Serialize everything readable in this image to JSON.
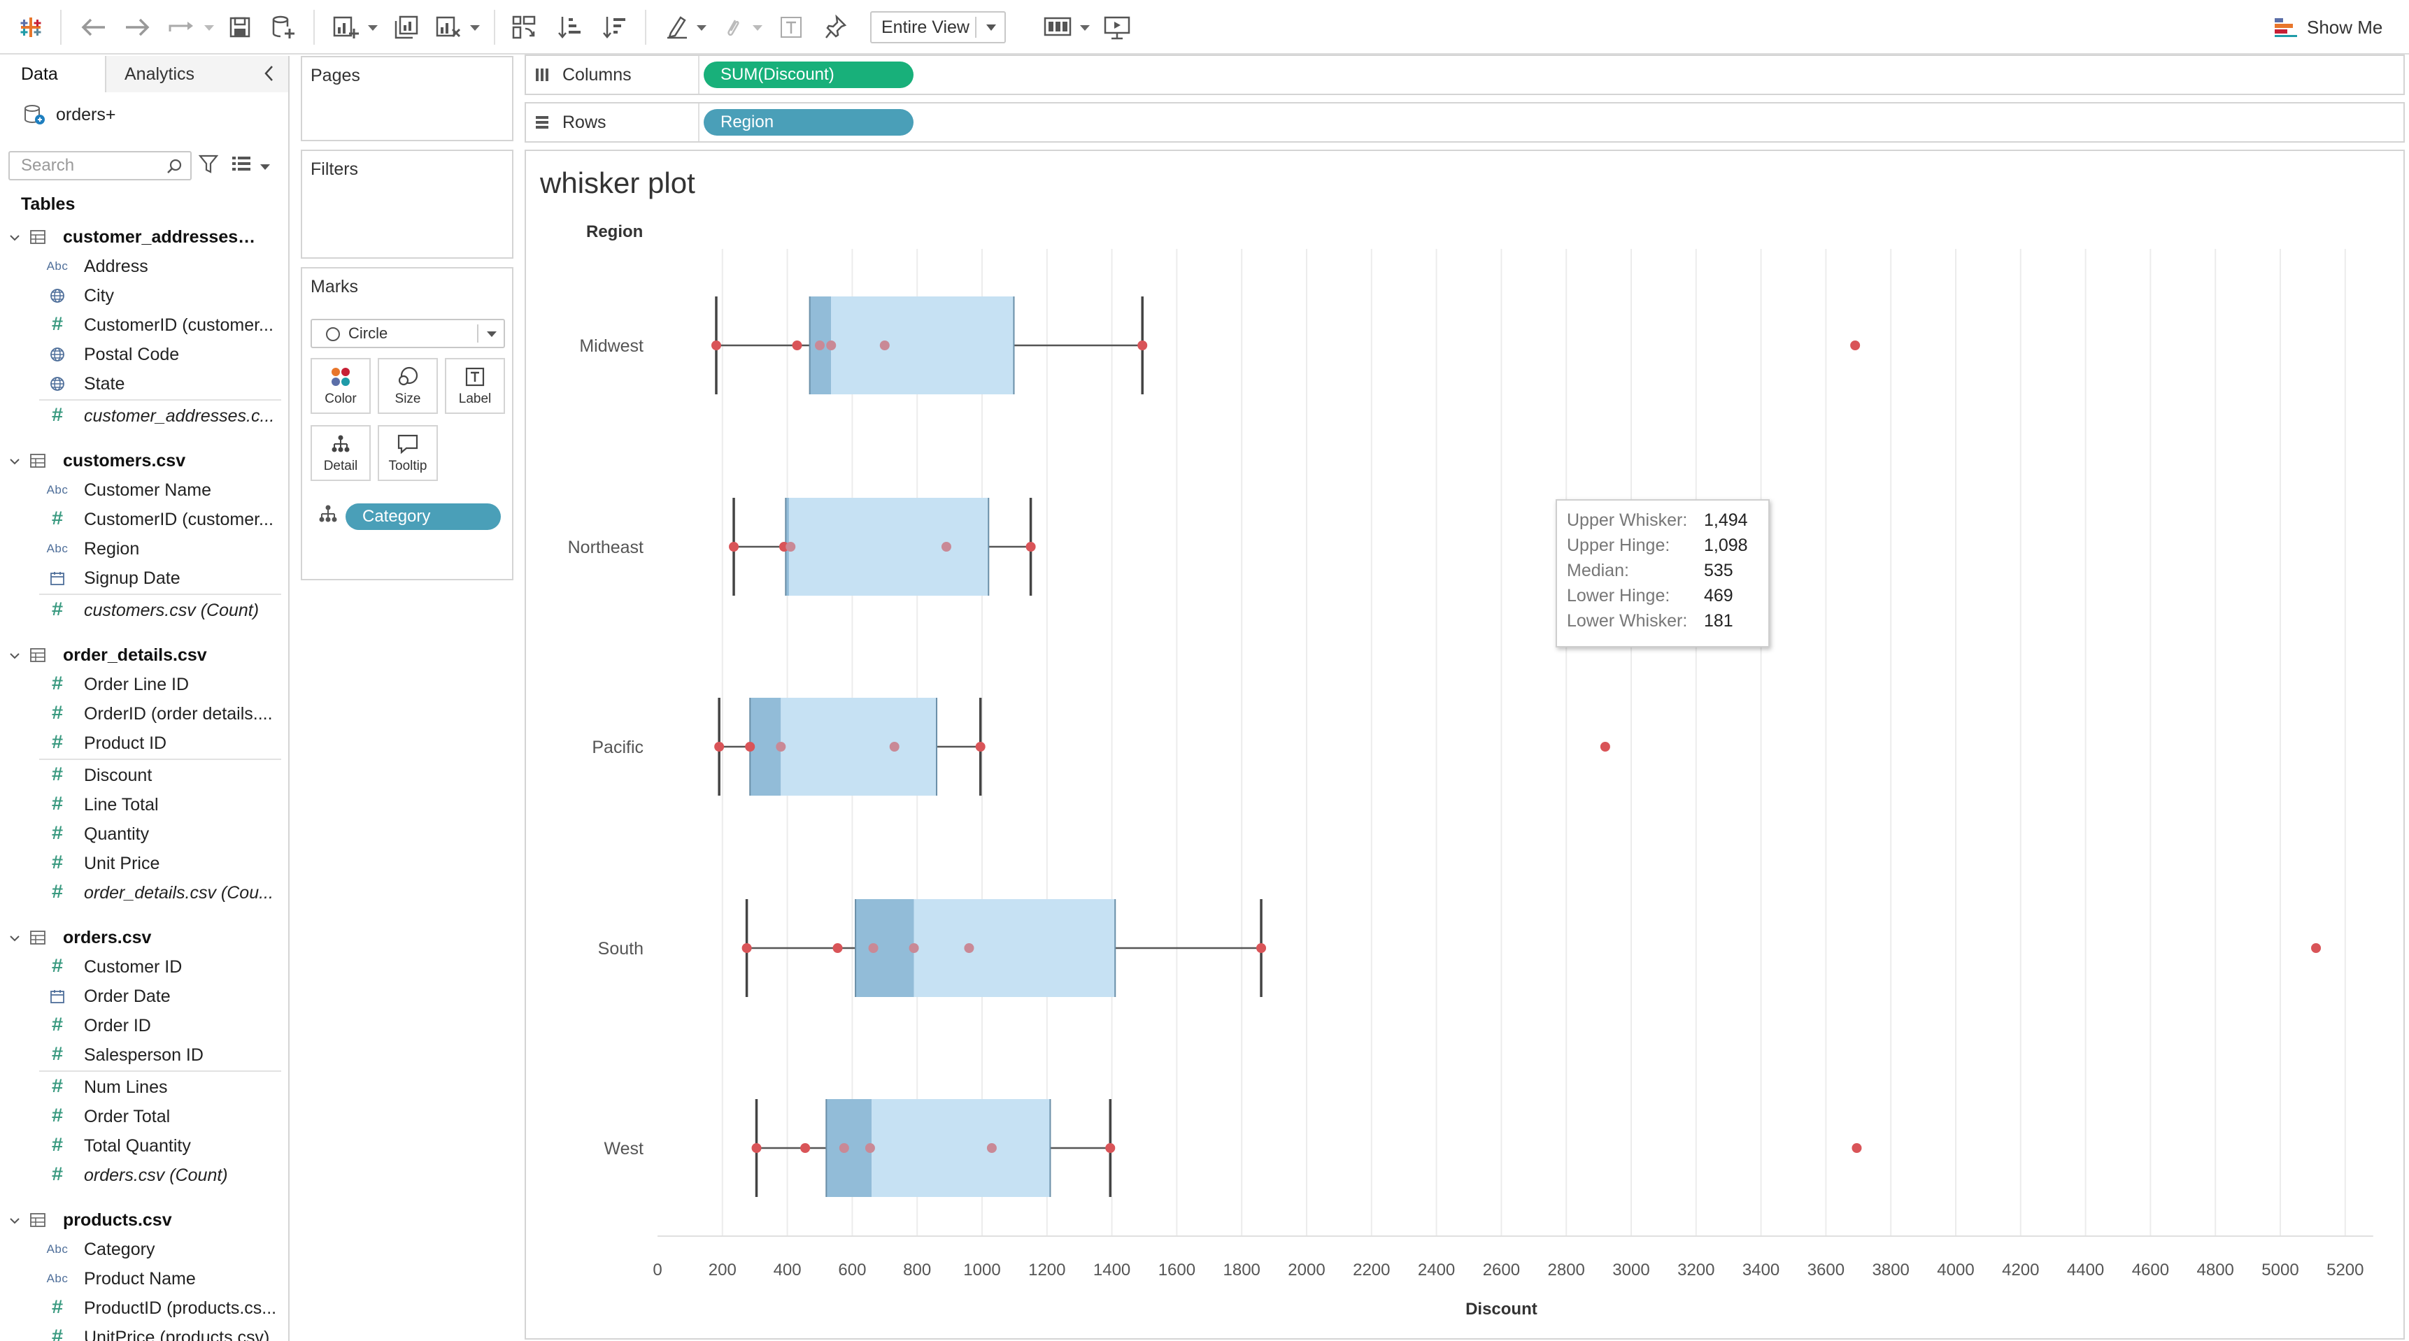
{
  "toolbar": {
    "fit_label": "Entire View",
    "show_me_label": "Show Me"
  },
  "data_pane": {
    "tabs": [
      "Data",
      "Analytics"
    ],
    "datasource": "orders+",
    "search_placeholder": "Search",
    "tables_heading": "Tables",
    "tables": [
      {
        "name": "customer_addresses.csv",
        "fields": [
          {
            "type": "abc",
            "name": "Address"
          },
          {
            "type": "geo",
            "name": "City"
          },
          {
            "type": "num",
            "name": "CustomerID (customer..."
          },
          {
            "type": "geo",
            "name": "Postal Code"
          },
          {
            "type": "geo",
            "name": "State"
          },
          {
            "type": "num",
            "name": "customer_addresses.c...",
            "italic": true,
            "sep": true
          }
        ]
      },
      {
        "name": "customers.csv",
        "fields": [
          {
            "type": "abc",
            "name": "Customer Name"
          },
          {
            "type": "num",
            "name": "CustomerID (customer..."
          },
          {
            "type": "abc",
            "name": "Region"
          },
          {
            "type": "date",
            "name": "Signup Date"
          },
          {
            "type": "num",
            "name": "customers.csv (Count)",
            "italic": true,
            "sep": true
          }
        ]
      },
      {
        "name": "order_details.csv",
        "fields": [
          {
            "type": "num",
            "name": "Order Line ID"
          },
          {
            "type": "num",
            "name": "OrderID (order details...."
          },
          {
            "type": "num",
            "name": "Product ID"
          },
          {
            "type": "num",
            "name": "Discount",
            "sep": true
          },
          {
            "type": "num",
            "name": "Line Total"
          },
          {
            "type": "num",
            "name": "Quantity"
          },
          {
            "type": "num",
            "name": "Unit Price"
          },
          {
            "type": "num",
            "name": "order_details.csv (Cou...",
            "italic": true
          }
        ]
      },
      {
        "name": "orders.csv",
        "fields": [
          {
            "type": "num",
            "name": "Customer ID"
          },
          {
            "type": "date",
            "name": "Order Date"
          },
          {
            "type": "num",
            "name": "Order ID"
          },
          {
            "type": "num",
            "name": "Salesperson ID"
          },
          {
            "type": "num",
            "name": "Num Lines",
            "sep": true
          },
          {
            "type": "num",
            "name": "Order Total"
          },
          {
            "type": "num",
            "name": "Total Quantity"
          },
          {
            "type": "num",
            "name": "orders.csv (Count)",
            "italic": true
          }
        ]
      },
      {
        "name": "products.csv",
        "fields": [
          {
            "type": "abc",
            "name": "Category"
          },
          {
            "type": "abc",
            "name": "Product Name"
          },
          {
            "type": "num",
            "name": "ProductID (products.cs..."
          },
          {
            "type": "num",
            "name": "UnitPrice (products.csv)"
          }
        ]
      }
    ]
  },
  "cards": {
    "pages": "Pages",
    "filters": "Filters",
    "marks": "Marks",
    "mark_type": "Circle",
    "mark_buttons": [
      "Color",
      "Size",
      "Label",
      "Detail",
      "Tooltip"
    ],
    "detail_pill": "Category"
  },
  "shelves": {
    "columns_label": "Columns",
    "columns_pill": "SUM(Discount)",
    "rows_label": "Rows",
    "rows_pill": "Region"
  },
  "colors": {
    "columns_pill": "#18b07a",
    "rows_pill": "#4a9fb8",
    "box_light": "#c6e1f3",
    "box_dark": "#92bcd8",
    "dot": "#d95458",
    "dot_inner": "#c98996"
  },
  "chart_data": {
    "type": "box-plot",
    "title": "whisker plot",
    "row_header": "Region",
    "xlabel": "Discount",
    "xlim": [
      0,
      5200
    ],
    "x_ticks": [
      0,
      200,
      400,
      600,
      800,
      1000,
      1200,
      1400,
      1600,
      1800,
      2000,
      2200,
      2400,
      2600,
      2800,
      3000,
      3200,
      3400,
      3600,
      3800,
      4000,
      4200,
      4400,
      4600,
      4800,
      5000,
      5200
    ],
    "categories": [
      "Midwest",
      "Northeast",
      "Pacific",
      "South",
      "West"
    ],
    "boxes": [
      {
        "region": "Midwest",
        "lower_whisker": 181,
        "lower_hinge": 469,
        "median": 535,
        "upper_hinge": 1098,
        "upper_whisker": 1494,
        "points": [
          181,
          430,
          500,
          535,
          700,
          1494,
          3690
        ]
      },
      {
        "region": "Northeast",
        "lower_whisker": 235,
        "lower_hinge": 395,
        "median": 405,
        "upper_hinge": 1020,
        "upper_whisker": 1150,
        "points": [
          235,
          390,
          410,
          890,
          1150,
          3030
        ]
      },
      {
        "region": "Pacific",
        "lower_whisker": 190,
        "lower_hinge": 285,
        "median": 380,
        "upper_hinge": 860,
        "upper_whisker": 995,
        "points": [
          190,
          285,
          380,
          730,
          995,
          2920
        ]
      },
      {
        "region": "South",
        "lower_whisker": 275,
        "lower_hinge": 610,
        "median": 790,
        "upper_hinge": 1410,
        "upper_whisker": 1860,
        "points": [
          275,
          555,
          665,
          790,
          960,
          1860,
          5110
        ]
      },
      {
        "region": "West",
        "lower_whisker": 305,
        "lower_hinge": 520,
        "median": 660,
        "upper_hinge": 1210,
        "upper_whisker": 1395,
        "points": [
          305,
          455,
          575,
          655,
          1030,
          1395,
          3695
        ]
      }
    ],
    "tooltip": {
      "region": "Midwest",
      "rows": [
        {
          "label": "Upper Whisker:",
          "value": "1,494"
        },
        {
          "label": "Upper Hinge:",
          "value": "1,098"
        },
        {
          "label": "Median:",
          "value": "535"
        },
        {
          "label": "Lower Hinge:",
          "value": "469"
        },
        {
          "label": "Lower Whisker:",
          "value": "181"
        }
      ]
    }
  }
}
